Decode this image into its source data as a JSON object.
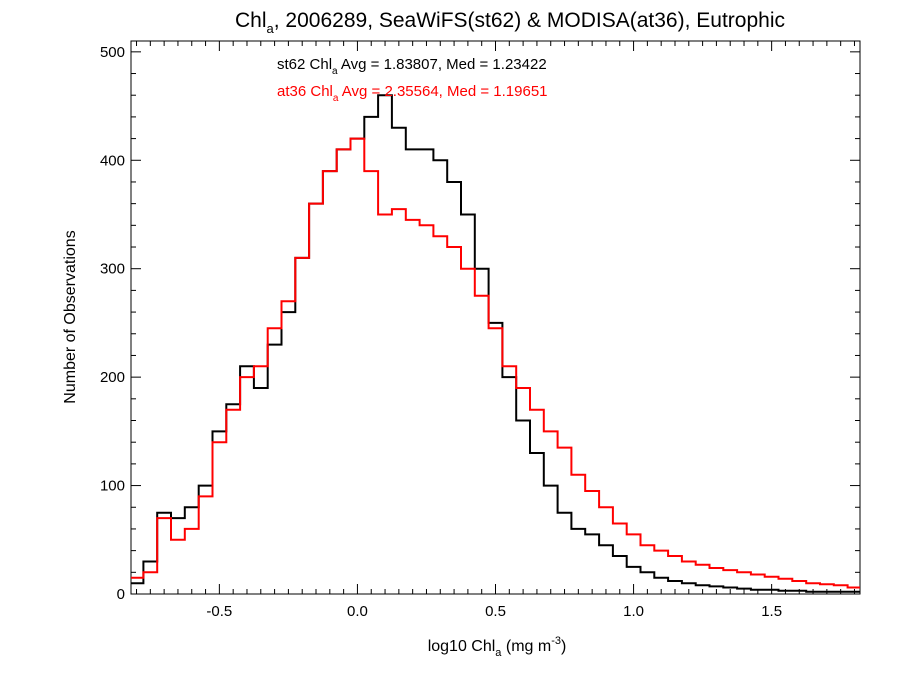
{
  "chart_data": {
    "type": "line",
    "title_main": "Chl",
    "title_sub": "a",
    "title_rest": ", 2006289, SeaWiFS(st62) & MODISA(at36), Eutrophic",
    "xlabel_main": "log10 Chl",
    "xlabel_sub": "a",
    "xlabel_rest": " (mg m",
    "xlabel_sup": "-3",
    "xlabel_end": ")",
    "ylabel": "Number of Observations",
    "xlim": [
      -0.82,
      1.82
    ],
    "ylim": [
      0,
      510
    ],
    "x_ticks": [
      -0.5,
      0.0,
      0.5,
      1.0,
      1.5
    ],
    "x_tick_labels": [
      "-0.5",
      "0.0",
      "0.5",
      "1.0",
      "1.5"
    ],
    "y_ticks": [
      0,
      100,
      200,
      300,
      400,
      500
    ],
    "y_tick_labels": [
      "0",
      "100",
      "200",
      "300",
      "400",
      "500"
    ],
    "grid": false,
    "annotations": [
      {
        "prefix": "st62 Chl",
        "sub": "a",
        "suffix": " Avg = 1.83807, Med = 1.23422",
        "color": "#000000"
      },
      {
        "prefix": "at36 Chl",
        "sub": "a",
        "suffix": " Avg = 2.35564, Med = 1.19651",
        "color": "#ff0000"
      }
    ],
    "series": [
      {
        "color": "#000000",
        "x": [
          -0.8,
          -0.75,
          -0.7,
          -0.65,
          -0.6,
          -0.55,
          -0.5,
          -0.45,
          -0.4,
          -0.35,
          -0.3,
          -0.25,
          -0.2,
          -0.15,
          -0.1,
          -0.05,
          0.0,
          0.05,
          0.1,
          0.15,
          0.2,
          0.25,
          0.3,
          0.35,
          0.4,
          0.45,
          0.5,
          0.55,
          0.6,
          0.65,
          0.7,
          0.75,
          0.8,
          0.85,
          0.9,
          0.95,
          1.0,
          1.05,
          1.1,
          1.15,
          1.2,
          1.25,
          1.3,
          1.35,
          1.4,
          1.45,
          1.5,
          1.55,
          1.6,
          1.65,
          1.7,
          1.75,
          1.8
        ],
        "y": [
          10,
          30,
          75,
          70,
          80,
          100,
          150,
          175,
          210,
          190,
          230,
          260,
          310,
          360,
          390,
          410,
          420,
          440,
          460,
          430,
          410,
          410,
          400,
          380,
          350,
          300,
          250,
          200,
          160,
          130,
          100,
          75,
          60,
          55,
          45,
          35,
          25,
          20,
          15,
          12,
          10,
          8,
          7,
          6,
          5,
          4,
          4,
          3,
          3,
          2,
          2,
          2,
          2
        ]
      },
      {
        "color": "#ff0000",
        "x": [
          -0.8,
          -0.75,
          -0.7,
          -0.65,
          -0.6,
          -0.55,
          -0.5,
          -0.45,
          -0.4,
          -0.35,
          -0.3,
          -0.25,
          -0.2,
          -0.15,
          -0.1,
          -0.05,
          0.0,
          0.05,
          0.1,
          0.15,
          0.2,
          0.25,
          0.3,
          0.35,
          0.4,
          0.45,
          0.5,
          0.55,
          0.6,
          0.65,
          0.7,
          0.75,
          0.8,
          0.85,
          0.9,
          0.95,
          1.0,
          1.05,
          1.1,
          1.15,
          1.2,
          1.25,
          1.3,
          1.35,
          1.4,
          1.45,
          1.5,
          1.55,
          1.6,
          1.65,
          1.7,
          1.75,
          1.8
        ],
        "y": [
          15,
          20,
          70,
          50,
          60,
          90,
          140,
          170,
          200,
          210,
          245,
          270,
          310,
          360,
          390,
          410,
          420,
          390,
          350,
          355,
          345,
          340,
          330,
          320,
          300,
          275,
          245,
          210,
          190,
          170,
          150,
          135,
          110,
          95,
          80,
          65,
          55,
          45,
          40,
          35,
          30,
          27,
          24,
          22,
          20,
          18,
          16,
          14,
          12,
          10,
          9,
          8,
          6
        ]
      }
    ]
  }
}
